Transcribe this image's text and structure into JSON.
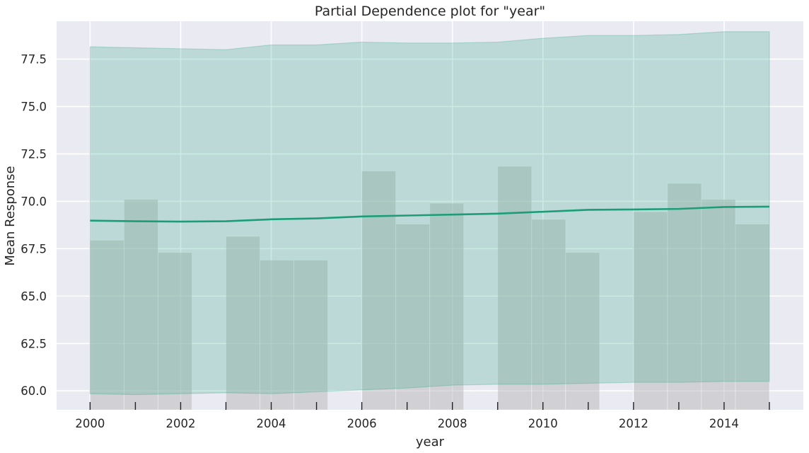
{
  "chart_data": {
    "type": "line",
    "title": "Partial Dependence plot for \"year\"",
    "xlabel": "year",
    "ylabel": "Mean Response",
    "xlim": [
      1999.26,
      2015.75
    ],
    "ylim": [
      59.0,
      79.5
    ],
    "x_ticks": [
      2000,
      2002,
      2004,
      2006,
      2008,
      2010,
      2012,
      2014
    ],
    "x_tick_labels": [
      "2000",
      "2002",
      "2004",
      "2006",
      "2008",
      "2010",
      "2012",
      "2014"
    ],
    "y_ticks": [
      60.0,
      62.5,
      65.0,
      67.5,
      70.0,
      72.5,
      75.0,
      77.5
    ],
    "y_tick_labels": [
      "60.0",
      "62.5",
      "65.0",
      "67.5",
      "70.0",
      "72.5",
      "75.0",
      "77.5"
    ],
    "grid": true,
    "x": [
      2000,
      2001,
      2002,
      2003,
      2004,
      2005,
      2006,
      2007,
      2008,
      2009,
      2010,
      2011,
      2012,
      2013,
      2014,
      2015
    ],
    "mean_response": [
      68.98,
      68.95,
      68.93,
      68.95,
      69.05,
      69.1,
      69.2,
      69.25,
      69.3,
      69.35,
      69.45,
      69.55,
      69.57,
      69.6,
      69.7,
      69.72
    ],
    "band_upper": [
      78.15,
      78.1,
      78.05,
      78.0,
      78.25,
      78.25,
      78.4,
      78.35,
      78.35,
      78.4,
      78.6,
      78.75,
      78.75,
      78.8,
      78.95,
      78.95
    ],
    "band_lower": [
      59.85,
      59.8,
      59.85,
      59.9,
      59.85,
      59.95,
      60.05,
      60.15,
      60.3,
      60.35,
      60.35,
      60.4,
      60.45,
      60.45,
      60.5,
      60.5
    ],
    "histogram_heights": [
      67.95,
      70.1,
      67.3,
      0,
      68.15,
      66.9,
      66.9,
      0,
      71.6,
      68.8,
      69.9,
      0,
      71.85,
      69.05,
      67.3,
      0,
      69.45,
      70.95,
      70.1,
      68.8
    ],
    "histogram_bin_width": 0.75,
    "colors": {
      "line": "#1b9e77",
      "band_fill": "#1b9e77",
      "histogram_fill": "#b8b8b8",
      "background": "#eaeaf2",
      "grid": "#ffffff"
    }
  }
}
